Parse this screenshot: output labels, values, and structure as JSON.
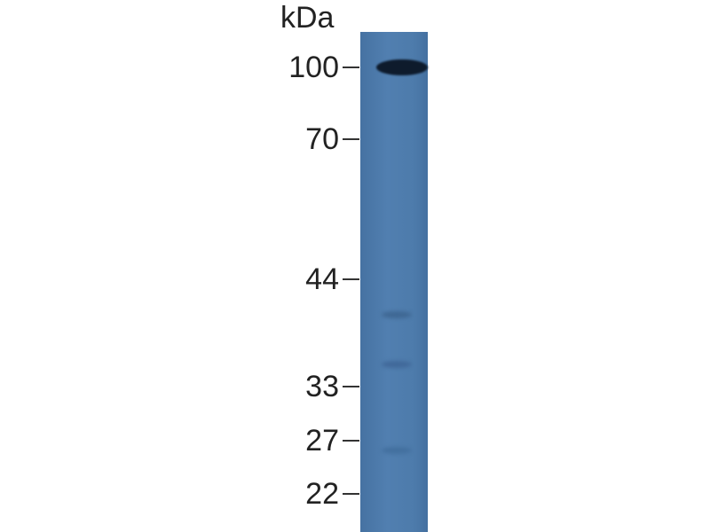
{
  "unit_label": "kDa",
  "markers": [
    {
      "label": "100",
      "kda": 100
    },
    {
      "label": "70",
      "kda": 70
    },
    {
      "label": "44",
      "kda": 44
    },
    {
      "label": "33",
      "kda": 33
    },
    {
      "label": "27",
      "kda": 27
    },
    {
      "label": "22",
      "kda": 22
    }
  ],
  "lane_color": "#4d7bab",
  "bands": [
    {
      "kda": 100,
      "intensity": "strong",
      "color": "#0e1b2c"
    },
    {
      "kda": 40,
      "intensity": "faint",
      "color": "#3f6894"
    },
    {
      "kda": 35,
      "intensity": "faint",
      "color": "#41699a"
    },
    {
      "kda": 26,
      "intensity": "faint",
      "color": "#43709f"
    }
  ]
}
